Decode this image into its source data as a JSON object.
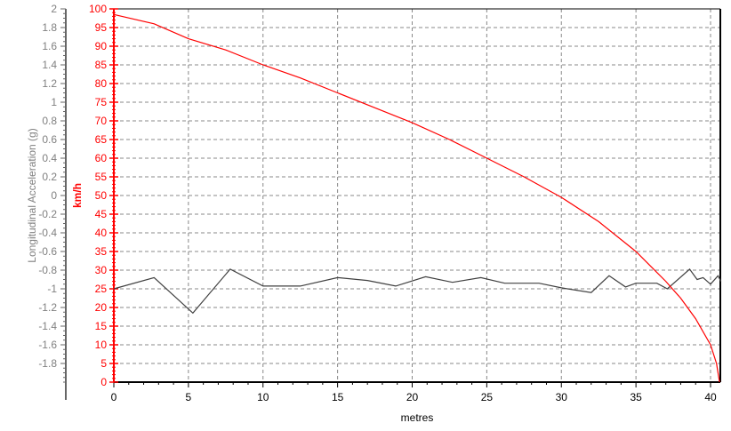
{
  "chart_data": {
    "type": "line",
    "xlabel": "metres",
    "xlim": [
      0,
      40.7
    ],
    "xticks": [
      0,
      5,
      10,
      15,
      20,
      25,
      30,
      35,
      40
    ],
    "grid": true,
    "y_left": {
      "label": "Longitudinal Acceleration (g)",
      "ylim": [
        -2,
        2
      ],
      "ticks": [
        2,
        1.8,
        1.6,
        1.4,
        1.2,
        1,
        0.8,
        0.6,
        0.4,
        0.2,
        0,
        -0.2,
        -0.4,
        -0.6,
        -0.8,
        -1,
        -1.2,
        -1.4,
        -1.6,
        -1.8
      ],
      "color": "#808080"
    },
    "y_right": {
      "label": "km/h",
      "ylim": [
        0,
        100
      ],
      "ticks": [
        100,
        95,
        90,
        85,
        80,
        75,
        70,
        65,
        60,
        55,
        50,
        45,
        40,
        35,
        30,
        25,
        20,
        15,
        10,
        5,
        0
      ],
      "color": "#ff0000"
    },
    "series": [
      {
        "axis": "left",
        "color": "#404040",
        "x": [
          0,
          2.7,
          5.3,
          7.8,
          10.0,
          12.5,
          15.0,
          17.0,
          18.9,
          20.9,
          22.7,
          24.6,
          26.2,
          28.5,
          30.0,
          32.0,
          33.2,
          34.3,
          35.0,
          36.4,
          37.1,
          38.6,
          39.1,
          39.5,
          40.0,
          40.5,
          40.7
        ],
        "y": [
          -1.0,
          -0.88,
          -1.26,
          -0.79,
          -0.97,
          -0.97,
          -0.88,
          -0.91,
          -0.97,
          -0.87,
          -0.93,
          -0.88,
          -0.94,
          -0.94,
          -0.99,
          -1.04,
          -0.86,
          -0.98,
          -0.94,
          -0.94,
          -1.0,
          -0.79,
          -0.9,
          -0.88,
          -0.95,
          -0.86,
          -0.92
        ]
      },
      {
        "axis": "right",
        "color": "#ff0000",
        "x": [
          0,
          2.7,
          5,
          7.5,
          10,
          12.5,
          15,
          17.5,
          20,
          22.5,
          25,
          27.5,
          30,
          32.5,
          35,
          36,
          37,
          38,
          39,
          40,
          40.4,
          40.6
        ],
        "y": [
          98.5,
          96,
          92,
          89,
          85,
          81.5,
          77.5,
          73.5,
          69.5,
          65,
          60,
          55,
          49.5,
          43,
          35,
          31,
          27,
          22.5,
          17,
          10,
          5,
          0
        ]
      }
    ]
  }
}
